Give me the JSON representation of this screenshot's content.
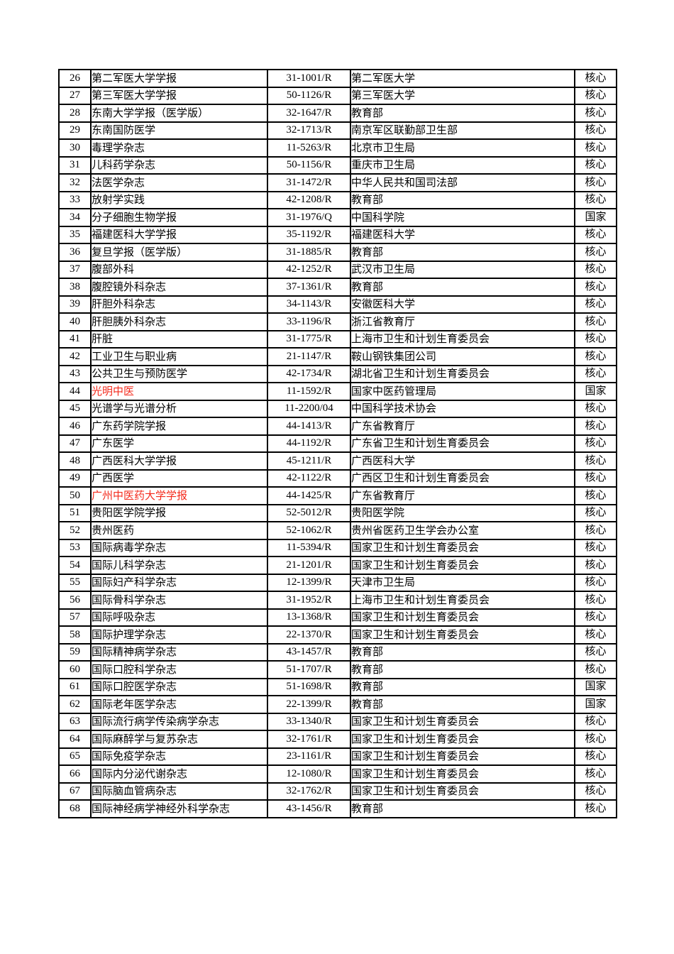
{
  "page": {
    "background": "#ffffff"
  },
  "colors": {
    "border": "#000000",
    "text": "#000000",
    "highlight_red": "#f42b1d"
  },
  "table": {
    "rows": [
      {
        "num": "26",
        "name": "第二军医大学学报",
        "code": "31-1001/R",
        "sponsor": "第二军医大学",
        "level": "核心",
        "red": false
      },
      {
        "num": "27",
        "name": "第三军医大学学报",
        "code": "50-1126/R",
        "sponsor": "第三军医大学",
        "level": "核心",
        "red": false
      },
      {
        "num": "28",
        "name": "东南大学学报（医学版）",
        "code": "32-1647/R",
        "sponsor": "教育部",
        "level": "核心",
        "red": false
      },
      {
        "num": "29",
        "name": "东南国防医学",
        "code": "32-1713/R",
        "sponsor": "南京军区联勤部卫生部",
        "level": "核心",
        "red": false
      },
      {
        "num": "30",
        "name": "毒理学杂志",
        "code": "11-5263/R",
        "sponsor": "北京市卫生局",
        "level": "核心",
        "red": false
      },
      {
        "num": "31",
        "name": "儿科药学杂志",
        "code": "50-1156/R",
        "sponsor": "重庆市卫生局",
        "level": "核心",
        "red": false
      },
      {
        "num": "32",
        "name": "法医学杂志",
        "code": "31-1472/R",
        "sponsor": "中华人民共和国司法部",
        "level": "核心",
        "red": false
      },
      {
        "num": "33",
        "name": "放射学实践",
        "code": "42-1208/R",
        "sponsor": "教育部",
        "level": "核心",
        "red": false
      },
      {
        "num": "34",
        "name": "分子细胞生物学报",
        "code": "31-1976/Q",
        "sponsor": "中国科学院",
        "level": "国家",
        "red": false
      },
      {
        "num": "35",
        "name": "福建医科大学学报",
        "code": "35-1192/R",
        "sponsor": "福建医科大学",
        "level": "核心",
        "red": false
      },
      {
        "num": "36",
        "name": "复旦学报（医学版）",
        "code": "31-1885/R",
        "sponsor": "教育部",
        "level": "核心",
        "red": false
      },
      {
        "num": "37",
        "name": "腹部外科",
        "code": "42-1252/R",
        "sponsor": "武汉市卫生局",
        "level": "核心",
        "red": false
      },
      {
        "num": "38",
        "name": "腹腔镜外科杂志",
        "code": "37-1361/R",
        "sponsor": "教育部",
        "level": "核心",
        "red": false
      },
      {
        "num": "39",
        "name": "肝胆外科杂志",
        "code": "34-1143/R",
        "sponsor": "安徽医科大学",
        "level": "核心",
        "red": false
      },
      {
        "num": "40",
        "name": "肝胆胰外科杂志",
        "code": "33-1196/R",
        "sponsor": "浙江省教育厅",
        "level": "核心",
        "red": false
      },
      {
        "num": "41",
        "name": "肝脏",
        "code": "31-1775/R",
        "sponsor": "上海市卫生和计划生育委员会",
        "level": "核心",
        "red": false
      },
      {
        "num": "42",
        "name": "工业卫生与职业病",
        "code": "21-1147/R",
        "sponsor": "鞍山钢铁集团公司",
        "level": "核心",
        "red": false
      },
      {
        "num": "43",
        "name": "公共卫生与预防医学",
        "code": "42-1734/R",
        "sponsor": "湖北省卫生和计划生育委员会",
        "level": "核心",
        "red": false
      },
      {
        "num": "44",
        "name": "光明中医",
        "code": "11-1592/R",
        "sponsor": "国家中医药管理局",
        "level": "国家",
        "red": true
      },
      {
        "num": "45",
        "name": "光谱学与光谱分析",
        "code": "11-2200/04",
        "sponsor": "中国科学技术协会",
        "level": "核心",
        "red": false
      },
      {
        "num": "46",
        "name": "广东药学院学报",
        "code": "44-1413/R",
        "sponsor": "广东省教育厅",
        "level": "核心",
        "red": false
      },
      {
        "num": "47",
        "name": "广东医学",
        "code": "44-1192/R",
        "sponsor": "广东省卫生和计划生育委员会",
        "level": "核心",
        "red": false
      },
      {
        "num": "48",
        "name": "广西医科大学学报",
        "code": "45-1211/R",
        "sponsor": "广西医科大学",
        "level": "核心",
        "red": false
      },
      {
        "num": "49",
        "name": "广西医学",
        "code": "42-1122/R",
        "sponsor": "广西区卫生和计划生育委员会",
        "level": "核心",
        "red": false
      },
      {
        "num": "50",
        "name": "广州中医药大学学报",
        "code": "44-1425/R",
        "sponsor": "广东省教育厅",
        "level": "核心",
        "red": true
      },
      {
        "num": "51",
        "name": "贵阳医学院学报",
        "code": "52-5012/R",
        "sponsor": "贵阳医学院",
        "level": "核心",
        "red": false
      },
      {
        "num": "52",
        "name": "贵州医药",
        "code": "52-1062/R",
        "sponsor": "贵州省医药卫生学会办公室",
        "level": "核心",
        "red": false
      },
      {
        "num": "53",
        "name": "国际病毒学杂志",
        "code": "11-5394/R",
        "sponsor": "国家卫生和计划生育委员会",
        "level": "核心",
        "red": false
      },
      {
        "num": "54",
        "name": "国际儿科学杂志",
        "code": "21-1201/R",
        "sponsor": "国家卫生和计划生育委员会",
        "level": "核心",
        "red": false
      },
      {
        "num": "55",
        "name": "国际妇产科学杂志",
        "code": "12-1399/R",
        "sponsor": "天津市卫生局",
        "level": "核心",
        "red": false
      },
      {
        "num": "56",
        "name": "国际骨科学杂志",
        "code": "31-1952/R",
        "sponsor": "上海市卫生和计划生育委员会",
        "level": "核心",
        "red": false
      },
      {
        "num": "57",
        "name": "国际呼吸杂志",
        "code": "13-1368/R",
        "sponsor": "国家卫生和计划生育委员会",
        "level": "核心",
        "red": false
      },
      {
        "num": "58",
        "name": "国际护理学杂志",
        "code": "22-1370/R",
        "sponsor": "国家卫生和计划生育委员会",
        "level": "核心",
        "red": false
      },
      {
        "num": "59",
        "name": "国际精神病学杂志",
        "code": "43-1457/R",
        "sponsor": "教育部",
        "level": "核心",
        "red": false
      },
      {
        "num": "60",
        "name": "国际口腔科学杂志",
        "code": "51-1707/R",
        "sponsor": "教育部",
        "level": "核心",
        "red": false
      },
      {
        "num": "61",
        "name": "国际口腔医学杂志",
        "code": "51-1698/R",
        "sponsor": "教育部",
        "level": "国家",
        "red": false
      },
      {
        "num": "62",
        "name": "国际老年医学杂志",
        "code": "22-1399/R",
        "sponsor": "教育部",
        "level": "国家",
        "red": false
      },
      {
        "num": "63",
        "name": "国际流行病学传染病学杂志",
        "code": "33-1340/R",
        "sponsor": "国家卫生和计划生育委员会",
        "level": "核心",
        "red": false
      },
      {
        "num": "64",
        "name": "国际麻醉学与复苏杂志",
        "code": "32-1761/R",
        "sponsor": "国家卫生和计划生育委员会",
        "level": "核心",
        "red": false
      },
      {
        "num": "65",
        "name": "国际免疫学杂志",
        "code": "23-1161/R",
        "sponsor": "国家卫生和计划生育委员会",
        "level": "核心",
        "red": false
      },
      {
        "num": "66",
        "name": "国际内分泌代谢杂志",
        "code": "12-1080/R",
        "sponsor": "国家卫生和计划生育委员会",
        "level": "核心",
        "red": false
      },
      {
        "num": "67",
        "name": "国际脑血管病杂志",
        "code": "32-1762/R",
        "sponsor": "国家卫生和计划生育委员会",
        "level": "核心",
        "red": false
      },
      {
        "num": "68",
        "name": "国际神经病学神经外科学杂志",
        "code": "43-1456/R",
        "sponsor": "教育部",
        "level": "核心",
        "red": false
      }
    ]
  }
}
